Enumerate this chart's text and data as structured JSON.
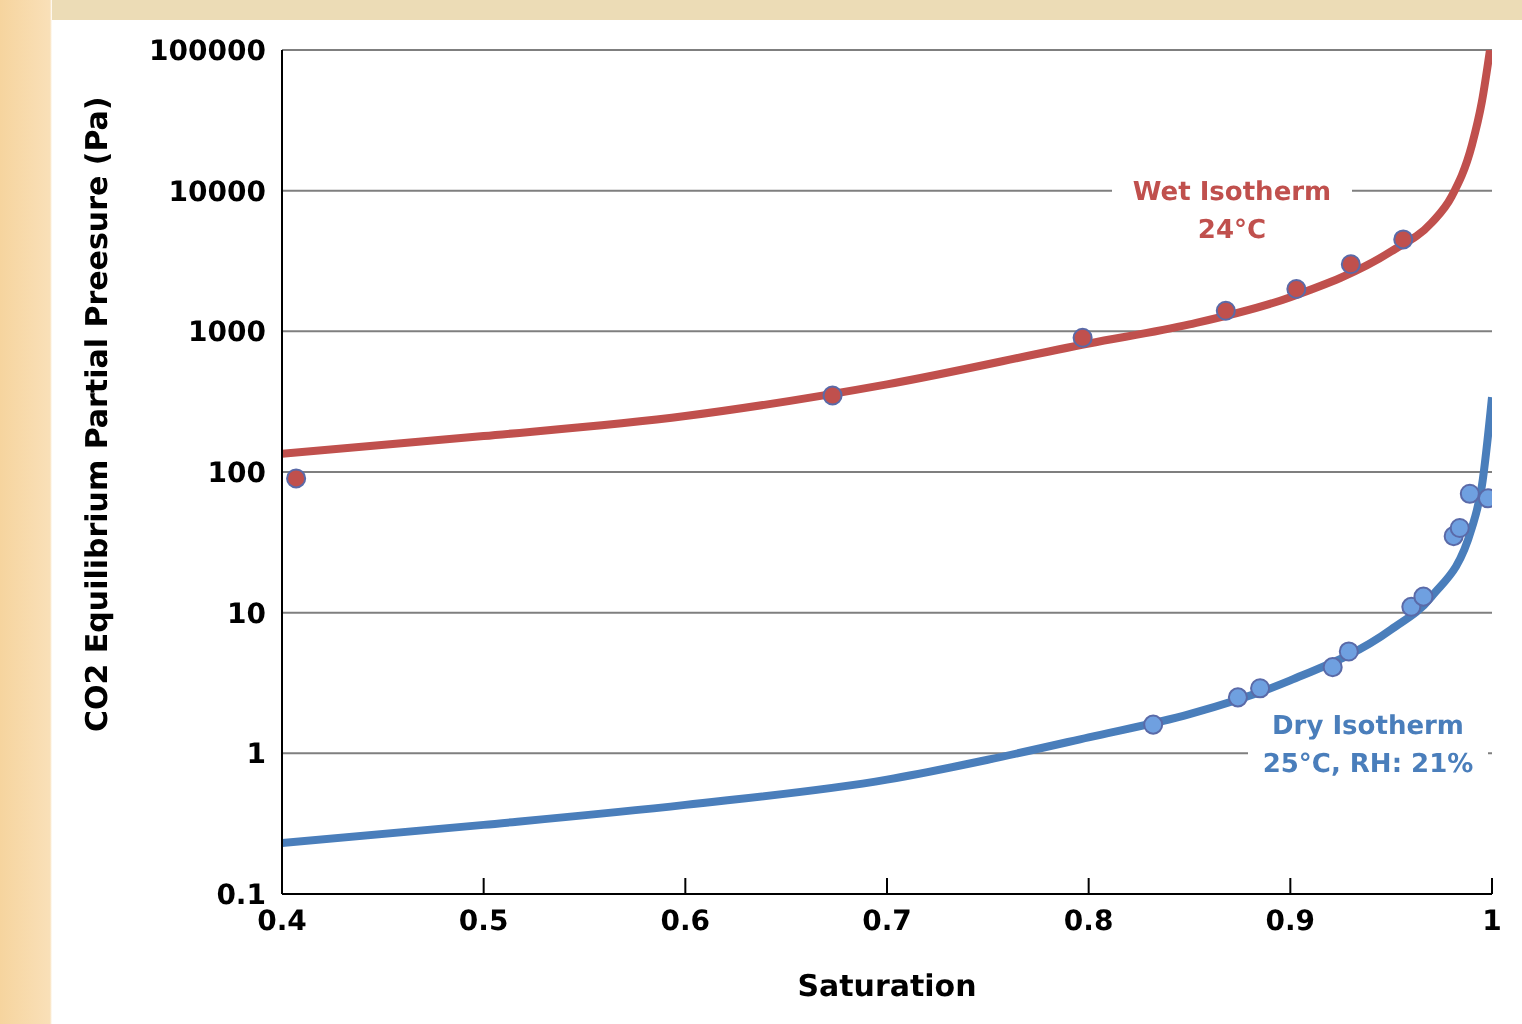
{
  "chart_data": {
    "type": "line",
    "xlabel": "Saturation",
    "ylabel": "CO2 Equilibrium Partial Preesure (Pa)",
    "xlim": [
      0.4,
      1
    ],
    "xticks": [
      0.4,
      0.5,
      0.6,
      0.7,
      0.8,
      0.9,
      1
    ],
    "ylim": [
      0.1,
      100000
    ],
    "yticks": [
      0.1,
      1,
      10,
      100,
      1000,
      10000,
      100000
    ],
    "log": "y",
    "grid": "y",
    "legend": false,
    "series": [
      {
        "marker": "none",
        "line_style": "solid",
        "color": "#c0504d",
        "x": [
          0.4,
          0.5,
          0.6,
          0.7,
          0.8,
          0.85,
          0.9,
          0.95,
          0.97,
          0.98,
          0.99,
          0.995,
          0.999
        ],
        "values": [
          135,
          180,
          250,
          420,
          820,
          1120,
          1750,
          3700,
          5900,
          9100,
          21000,
          43000,
          100000
        ]
      },
      {
        "type": "scatter",
        "marker": "circle",
        "color": "#c0504d",
        "x": [
          0.407,
          0.673,
          0.797,
          0.868,
          0.903,
          0.93,
          0.956
        ],
        "values": [
          90,
          350,
          900,
          1400,
          2000,
          3000,
          4500
        ]
      },
      {
        "marker": "none",
        "line_style": "solid",
        "color": "#4a7ebb",
        "x": [
          0.4,
          0.5,
          0.6,
          0.7,
          0.75,
          0.8,
          0.85,
          0.9,
          0.95,
          0.97,
          0.99,
          0.995,
          1
        ],
        "values": [
          0.23,
          0.31,
          0.43,
          0.65,
          0.9,
          1.3,
          1.9,
          3.3,
          7.6,
          13,
          40,
          80,
          340
        ]
      },
      {
        "type": "scatter",
        "marker": "circle",
        "color": "#6fa0e0",
        "x": [
          0.832,
          0.874,
          0.885,
          0.921,
          0.929,
          0.96,
          0.966,
          0.981,
          0.984,
          0.989,
          0.998
        ],
        "values": [
          1.6,
          2.5,
          2.9,
          4.1,
          5.3,
          11,
          13,
          35,
          40,
          70,
          65
        ]
      }
    ],
    "annotations": [
      "Wet Isotherm\n24°C",
      "Dry Isotherm\n25°C, RH: 21%"
    ]
  }
}
